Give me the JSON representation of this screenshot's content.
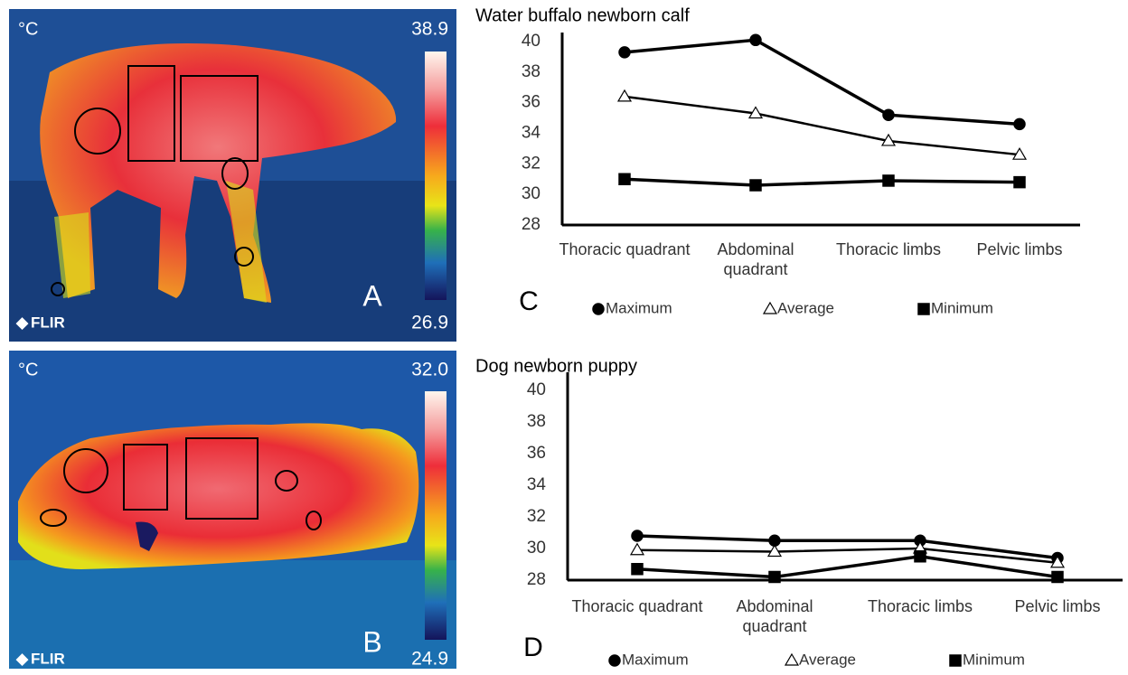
{
  "images": [
    {
      "unit": "°C",
      "scale_max": "38.9",
      "scale_min": "26.9",
      "brand": "FLIR",
      "label": "A"
    },
    {
      "unit": "°C",
      "scale_max": "32.0",
      "scale_min": "24.9",
      "brand": "FLIR",
      "label": "B"
    }
  ],
  "chart_data": [
    {
      "type": "line",
      "title": "Water buffalo newborn calf",
      "panel_label": "C",
      "categories": [
        "Thoracic quadrant",
        "Abdominal quadrant",
        "Thoracic limbs",
        "Pelvic limbs"
      ],
      "series": [
        {
          "name": "Maximum",
          "color": "#000000",
          "marker": "circle",
          "values": [
            39.3,
            40.1,
            35.2,
            34.6
          ]
        },
        {
          "name": "Average",
          "color": "#000000",
          "marker": "triangle",
          "values": [
            36.4,
            35.3,
            33.5,
            32.6
          ]
        },
        {
          "name": "Minimum",
          "color": "#000000",
          "marker": "square",
          "values": [
            31.0,
            30.6,
            30.9,
            30.8
          ]
        }
      ],
      "ylim": [
        28,
        40
      ],
      "yticks": [
        28,
        30,
        32,
        34,
        36,
        38,
        40
      ]
    },
    {
      "type": "line",
      "title": "Dog newborn puppy",
      "panel_label": "D",
      "categories": [
        "Thoracic quadrant",
        "Abdominal quadrant",
        "Thoracic limbs",
        "Pelvic limbs"
      ],
      "series": [
        {
          "name": "Maximum",
          "color": "#000000",
          "marker": "circle",
          "values": [
            30.8,
            30.5,
            30.5,
            29.4
          ]
        },
        {
          "name": "Average",
          "color": "#000000",
          "marker": "triangle",
          "values": [
            29.9,
            29.8,
            30.0,
            29.1
          ]
        },
        {
          "name": "Minimum",
          "color": "#000000",
          "marker": "square",
          "values": [
            28.7,
            28.2,
            29.5,
            28.2
          ]
        }
      ],
      "ylim": [
        28,
        40
      ],
      "yticks": [
        28,
        30,
        32,
        34,
        36,
        38,
        40
      ]
    }
  ]
}
